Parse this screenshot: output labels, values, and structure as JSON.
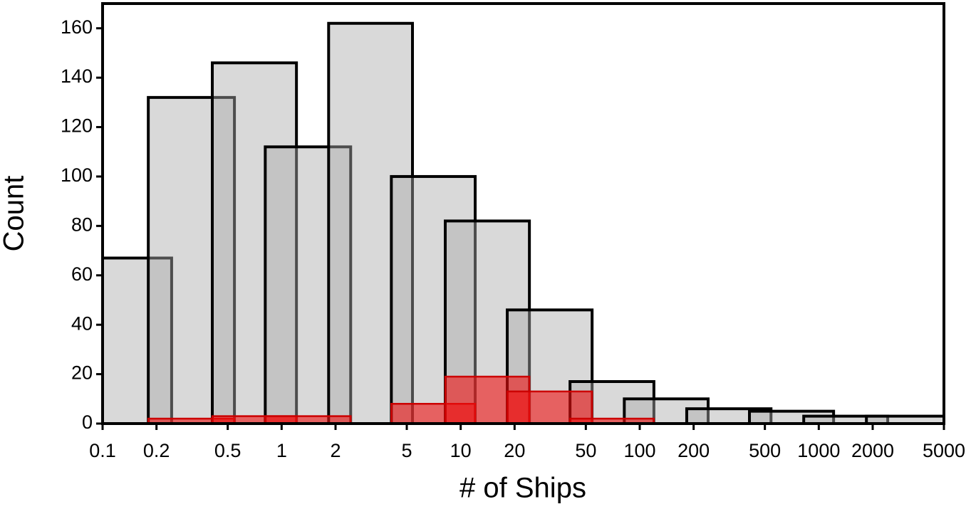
{
  "chart_data": {
    "type": "histogram",
    "x_label": "# of Ships",
    "y_label": "Count",
    "x_scale": "log",
    "xlim": [
      0.1,
      5000
    ],
    "ylim": [
      0,
      170
    ],
    "xticks": [
      0.1,
      0.2,
      0.5,
      1,
      2,
      5,
      10,
      20,
      50,
      100,
      200,
      500,
      1000,
      2000,
      5000
    ],
    "yticks": [
      0,
      20,
      40,
      60,
      80,
      100,
      120,
      140,
      160
    ],
    "series": [
      {
        "color": "#aaaaaa",
        "edge_color": "#000000",
        "left": [
          0.1,
          0.18,
          0.41,
          0.81,
          1.83,
          4.1,
          8.2,
          18.2,
          40.8,
          82,
          183,
          410,
          824,
          1845
        ],
        "right": [
          0.243,
          0.545,
          1.21,
          2.43,
          5.38,
          12.05,
          24.2,
          54.2,
          120,
          241,
          541,
          1210,
          2427,
          5000
        ],
        "values": [
          67,
          132,
          146,
          112,
          162,
          100,
          82,
          46,
          17,
          10,
          6,
          5,
          3,
          3
        ]
      },
      {
        "color": "#ee1111",
        "edge_color": "#cc0000",
        "left": [
          0.18,
          0.41,
          0.81,
          4.1,
          8.2,
          18.2,
          40.8
        ],
        "right": [
          0.545,
          1.21,
          2.43,
          12.05,
          24.2,
          54.2,
          120
        ],
        "values": [
          2,
          3,
          3,
          8,
          19,
          13,
          2
        ]
      }
    ]
  }
}
